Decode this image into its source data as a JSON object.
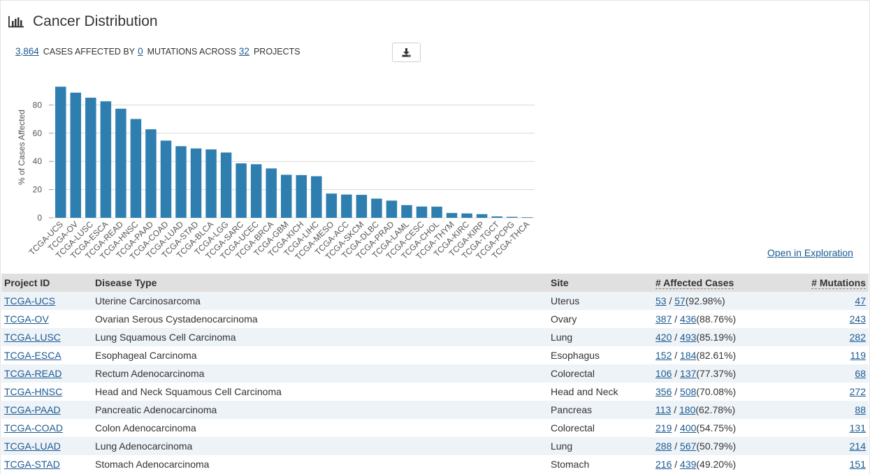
{
  "header": {
    "title": "Cancer Distribution",
    "icon": "bar-chart-icon"
  },
  "summary": {
    "cases_count": "3,864",
    "text_cases": "CASES AFFECTED BY",
    "mutations_count": "0",
    "text_mutations": "MUTATIONS ACROSS",
    "projects_count": "32",
    "text_projects": "PROJECTS"
  },
  "download_button": {
    "icon": "download-icon"
  },
  "open_exploration": "Open in Exploration",
  "colors": {
    "bar": "#2e7faf",
    "link": "#1c5a92",
    "grid": "#d8d8d8",
    "header_bg": "#e0e0e0",
    "row_alt": "#eef3f8"
  },
  "chart_data": {
    "type": "bar",
    "ylabel": "% of Cases Affected",
    "ylim": [
      0,
      100
    ],
    "yticks": [
      0,
      20,
      40,
      60,
      80
    ],
    "grid": true,
    "categories": [
      "TCGA-UCS",
      "TCGA-OV",
      "TCGA-LUSC",
      "TCGA-ESCA",
      "TCGA-READ",
      "TCGA-HNSC",
      "TCGA-PAAD",
      "TCGA-COAD",
      "TCGA-LUAD",
      "TCGA-STAD",
      "TCGA-BLCA",
      "TCGA-LGG",
      "TCGA-SARC",
      "TCGA-UCEC",
      "TCGA-BRCA",
      "TCGA-GBM",
      "TCGA-KICH",
      "TCGA-LIHC",
      "TCGA-MESO",
      "TCGA-ACC",
      "TCGA-SKCM",
      "TCGA-DLBC",
      "TCGA-PRAD",
      "TCGA-LAML",
      "TCGA-CESC",
      "TCGA-CHOL",
      "TCGA-THYM",
      "TCGA-KIRC",
      "TCGA-KIRP",
      "TCGA-TGCT",
      "TCGA-PCPG",
      "TCGA-THCA"
    ],
    "values": [
      92.98,
      88.76,
      85.19,
      82.61,
      77.37,
      70.08,
      62.78,
      54.75,
      50.79,
      49.2,
      48.5,
      46.3,
      38.6,
      38.0,
      35.0,
      30.5,
      30.3,
      29.5,
      17.2,
      16.5,
      16.3,
      13.6,
      12.2,
      9.0,
      8.0,
      7.9,
      3.4,
      3.1,
      2.6,
      1.0,
      0.7,
      0.4
    ]
  },
  "table": {
    "headers": {
      "project_id": "Project ID",
      "disease_type": "Disease Type",
      "site": "Site",
      "affected_cases": "# Affected Cases",
      "mutations": "# Mutations"
    },
    "rows": [
      {
        "project": "TCGA-UCS",
        "disease": "Uterine Carcinosarcoma",
        "site": "Uterus",
        "affected": "53",
        "total": "57",
        "pct": "(92.98%)",
        "mutations": "47"
      },
      {
        "project": "TCGA-OV",
        "disease": "Ovarian Serous Cystadenocarcinoma",
        "site": "Ovary",
        "affected": "387",
        "total": "436",
        "pct": "(88.76%)",
        "mutations": "243"
      },
      {
        "project": "TCGA-LUSC",
        "disease": "Lung Squamous Cell Carcinoma",
        "site": "Lung",
        "affected": "420",
        "total": "493",
        "pct": "(85.19%)",
        "mutations": "282"
      },
      {
        "project": "TCGA-ESCA",
        "disease": "Esophageal Carcinoma",
        "site": "Esophagus",
        "affected": "152",
        "total": "184",
        "pct": "(82.61%)",
        "mutations": "119"
      },
      {
        "project": "TCGA-READ",
        "disease": "Rectum Adenocarcinoma",
        "site": "Colorectal",
        "affected": "106",
        "total": "137",
        "pct": "(77.37%)",
        "mutations": "68"
      },
      {
        "project": "TCGA-HNSC",
        "disease": "Head and Neck Squamous Cell Carcinoma",
        "site": "Head and Neck",
        "affected": "356",
        "total": "508",
        "pct": "(70.08%)",
        "mutations": "272"
      },
      {
        "project": "TCGA-PAAD",
        "disease": "Pancreatic Adenocarcinoma",
        "site": "Pancreas",
        "affected": "113",
        "total": "180",
        "pct": "(62.78%)",
        "mutations": "88"
      },
      {
        "project": "TCGA-COAD",
        "disease": "Colon Adenocarcinoma",
        "site": "Colorectal",
        "affected": "219",
        "total": "400",
        "pct": "(54.75%)",
        "mutations": "131"
      },
      {
        "project": "TCGA-LUAD",
        "disease": "Lung Adenocarcinoma",
        "site": "Lung",
        "affected": "288",
        "total": "567",
        "pct": "(50.79%)",
        "mutations": "214"
      },
      {
        "project": "TCGA-STAD",
        "disease": "Stomach Adenocarcinoma",
        "site": "Stomach",
        "affected": "216",
        "total": "439",
        "pct": "(49.20%)",
        "mutations": "151"
      }
    ]
  }
}
